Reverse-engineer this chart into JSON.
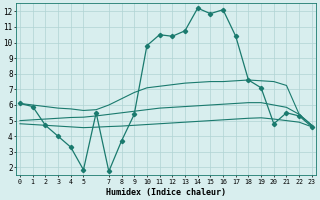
{
  "xlabel": "Humidex (Indice chaleur)",
  "x": [
    0,
    1,
    2,
    3,
    4,
    5,
    6,
    7,
    8,
    9,
    10,
    11,
    12,
    13,
    14,
    15,
    16,
    17,
    18,
    19,
    20,
    21,
    22,
    23
  ],
  "line_main": [
    6.1,
    5.9,
    4.7,
    4.0,
    3.3,
    1.85,
    5.5,
    1.75,
    3.7,
    5.4,
    9.8,
    10.5,
    10.4,
    10.75,
    12.2,
    11.85,
    12.1,
    10.4,
    7.6,
    7.1,
    4.8,
    5.5,
    5.3,
    4.6
  ],
  "line_top": [
    6.1,
    6.0,
    5.9,
    5.8,
    5.75,
    5.65,
    5.7,
    6.0,
    6.4,
    6.8,
    7.1,
    7.2,
    7.3,
    7.4,
    7.45,
    7.5,
    7.5,
    7.55,
    7.6,
    7.55,
    7.5,
    7.25,
    5.4,
    4.7
  ],
  "line_mid": [
    5.0,
    5.05,
    5.1,
    5.15,
    5.2,
    5.22,
    5.3,
    5.4,
    5.5,
    5.6,
    5.7,
    5.8,
    5.85,
    5.9,
    5.95,
    6.0,
    6.05,
    6.1,
    6.15,
    6.15,
    6.0,
    5.85,
    5.4,
    4.7
  ],
  "line_bot": [
    4.8,
    4.75,
    4.7,
    4.65,
    4.6,
    4.55,
    4.58,
    4.62,
    4.65,
    4.7,
    4.75,
    4.8,
    4.85,
    4.9,
    4.95,
    5.0,
    5.05,
    5.1,
    5.15,
    5.18,
    5.1,
    5.0,
    4.9,
    4.6
  ],
  "line_color": "#1a7a6e",
  "bg_color": "#d8eeee",
  "grid_color": "#b0d4d4",
  "ylim": [
    1.5,
    12.5
  ],
  "xlim": [
    -0.3,
    23.3
  ],
  "yticks": [
    2,
    3,
    4,
    5,
    6,
    7,
    8,
    9,
    10,
    11,
    12
  ],
  "xticks": [
    0,
    1,
    2,
    3,
    4,
    5,
    7,
    8,
    9,
    10,
    11,
    12,
    13,
    14,
    15,
    16,
    17,
    18,
    19,
    20,
    21,
    22,
    23
  ],
  "xticklabels": [
    "0",
    "1",
    "2",
    "3",
    "4",
    "5",
    "7",
    "8",
    "9",
    "10",
    "11",
    "12",
    "13",
    "14",
    "15",
    "16",
    "17",
    "18",
    "19",
    "20",
    "21",
    "22",
    "23"
  ]
}
